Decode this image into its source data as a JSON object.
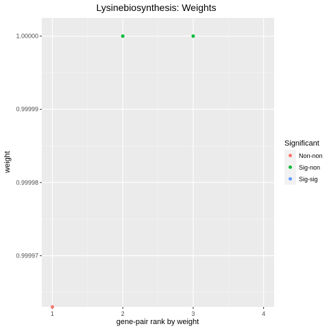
{
  "chart_data": {
    "type": "scatter",
    "title": "Lysinebiosynthesis: Weights",
    "xlabel": "gene-pair rank by weight",
    "ylabel": "weight",
    "x_ticks": [
      1,
      2,
      3,
      4
    ],
    "x_tick_labels": [
      "1",
      "2",
      "3",
      "4"
    ],
    "y_ticks": [
      0.99997,
      0.99998,
      0.99999,
      1.0
    ],
    "y_tick_labels": [
      "0.99997",
      "0.99998",
      "0.99999",
      "1.00000"
    ],
    "xlim": [
      0.85,
      4.15
    ],
    "ylim": [
      0.999963,
      1.0000025
    ],
    "grid": true,
    "legend": {
      "title": "Significant",
      "position": "right",
      "entries": [
        {
          "label": "Non-non",
          "color": "#F8766D"
        },
        {
          "label": "Sig-non",
          "color": "#00BA38"
        },
        {
          "label": "Sig-sig",
          "color": "#619CFF"
        }
      ]
    },
    "points": [
      {
        "x": 1,
        "y": 0.999963,
        "group": "Non-non"
      },
      {
        "x": 2,
        "y": 1.0,
        "group": "Sig-non"
      },
      {
        "x": 3,
        "y": 1.0,
        "group": "Sig-non"
      }
    ]
  }
}
